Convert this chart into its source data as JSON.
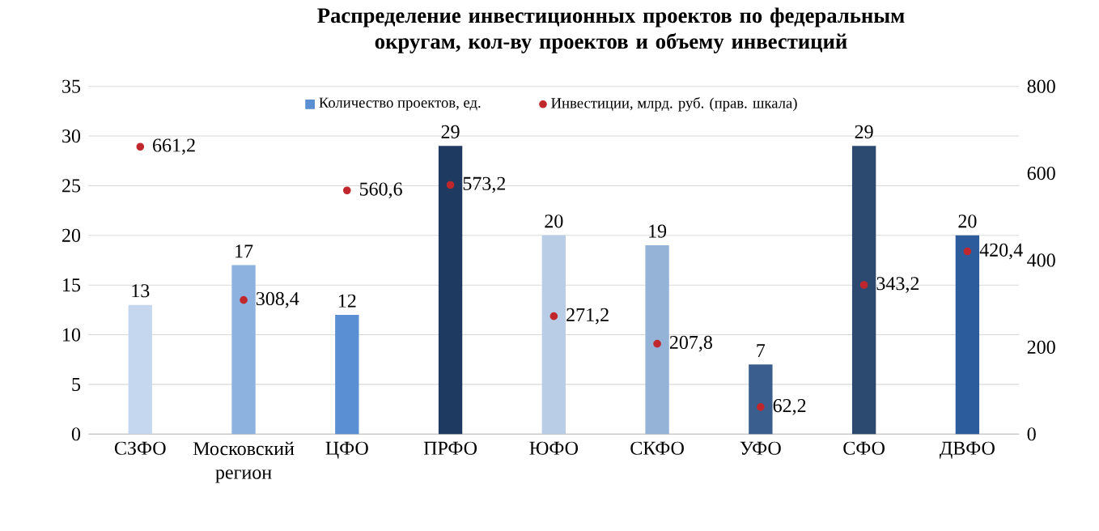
{
  "chart_data": {
    "type": "bar",
    "title": "Распределение инвестиционных проектов по федеральным округам, кол-ву проектов и объему инвестиций",
    "categories": [
      "СЗФО",
      "Московский регион",
      "ЦФО",
      "ПРФО",
      "ЮФО",
      "СКФО",
      "УФО",
      "СФО",
      "ДВФО"
    ],
    "series": [
      {
        "name": "Количество проектов, ед.",
        "color": "#5b8fd3",
        "colors": [
          "#c5d7ee",
          "#8eb2e0",
          "#5b8fd3",
          "#1f3a60",
          "#b9cde6",
          "#95b3d7",
          "#3a5f8f",
          "#2c4a70",
          "#2c5c9c"
        ],
        "values": [
          13,
          17,
          12,
          29,
          20,
          19,
          7,
          29,
          20
        ],
        "value_labels": [
          "13",
          "17",
          "12",
          "29",
          "20",
          "19",
          "7",
          "29",
          "20"
        ]
      },
      {
        "name": "Инвестиции, млрд. руб. (прав. шкала)",
        "type": "scatter",
        "axis": "y2",
        "color": "#c0272d",
        "values": [
          661.2,
          308.4,
          560.6,
          573.2,
          271.2,
          207.8,
          62.2,
          343.2,
          420.4
        ],
        "value_labels": [
          "661,2",
          "308,4",
          "560,6",
          "573,2",
          "271,2",
          "207,8",
          "62,2",
          "343,2",
          "420,4"
        ]
      }
    ],
    "ylim": [
      0,
      35
    ],
    "yticks": [
      0,
      5,
      10,
      15,
      20,
      25,
      30,
      35
    ],
    "y2lim": [
      0,
      800
    ],
    "y2ticks": [
      0,
      200,
      400,
      600,
      800
    ],
    "grid": "y",
    "legend": "top"
  }
}
